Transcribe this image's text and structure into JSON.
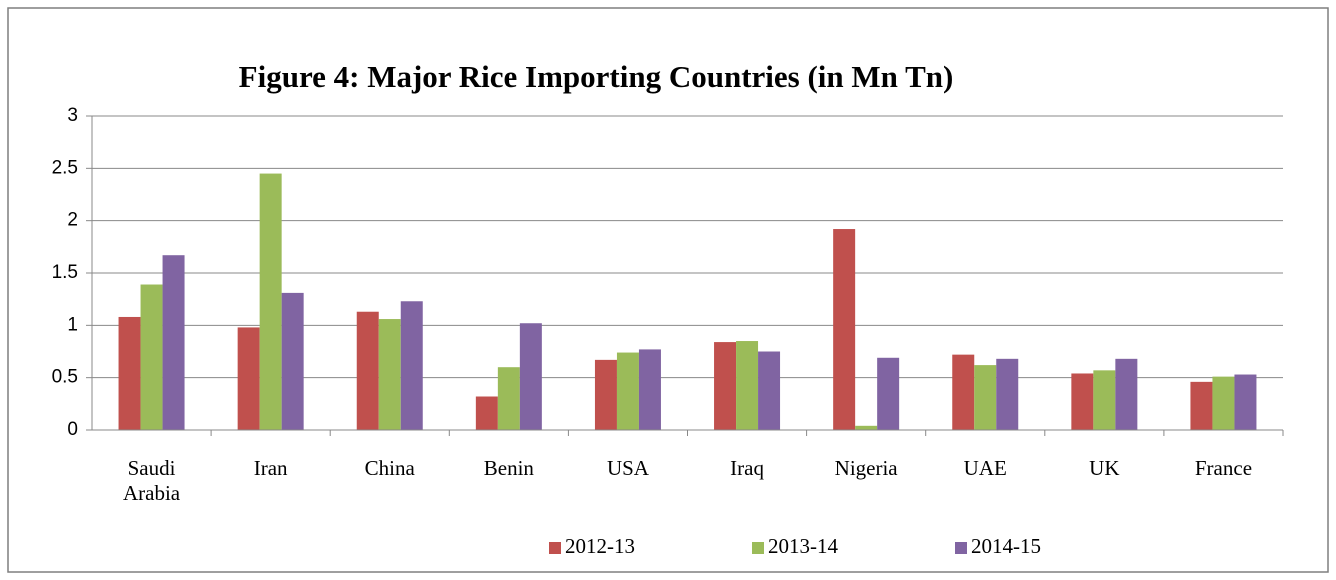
{
  "chart_data": {
    "type": "bar",
    "title": "Figure 4: Major Rice Importing Countries (in Mn Tn)",
    "categories": [
      "Saudi Arabia",
      "Iran",
      "China",
      "Benin",
      "USA",
      "Iraq",
      "Nigeria",
      "UAE",
      "UK",
      "France"
    ],
    "series": [
      {
        "name": "2012-13",
        "color": "#c0504d",
        "values": [
          1.08,
          0.98,
          1.13,
          0.32,
          0.67,
          0.84,
          1.92,
          0.72,
          0.54,
          0.46
        ]
      },
      {
        "name": "2013-14",
        "color": "#9bbb59",
        "values": [
          1.39,
          2.45,
          1.06,
          0.6,
          0.74,
          0.85,
          0.04,
          0.62,
          0.57,
          0.51
        ]
      },
      {
        "name": "2014-15",
        "color": "#8064a2",
        "values": [
          1.67,
          1.31,
          1.23,
          1.02,
          0.77,
          0.75,
          0.69,
          0.68,
          0.68,
          0.53
        ]
      }
    ],
    "ylim": [
      0,
      3
    ],
    "yticks": [
      0,
      0.5,
      1,
      1.5,
      2,
      2.5,
      3
    ],
    "grid": true,
    "legend": "bottom"
  }
}
